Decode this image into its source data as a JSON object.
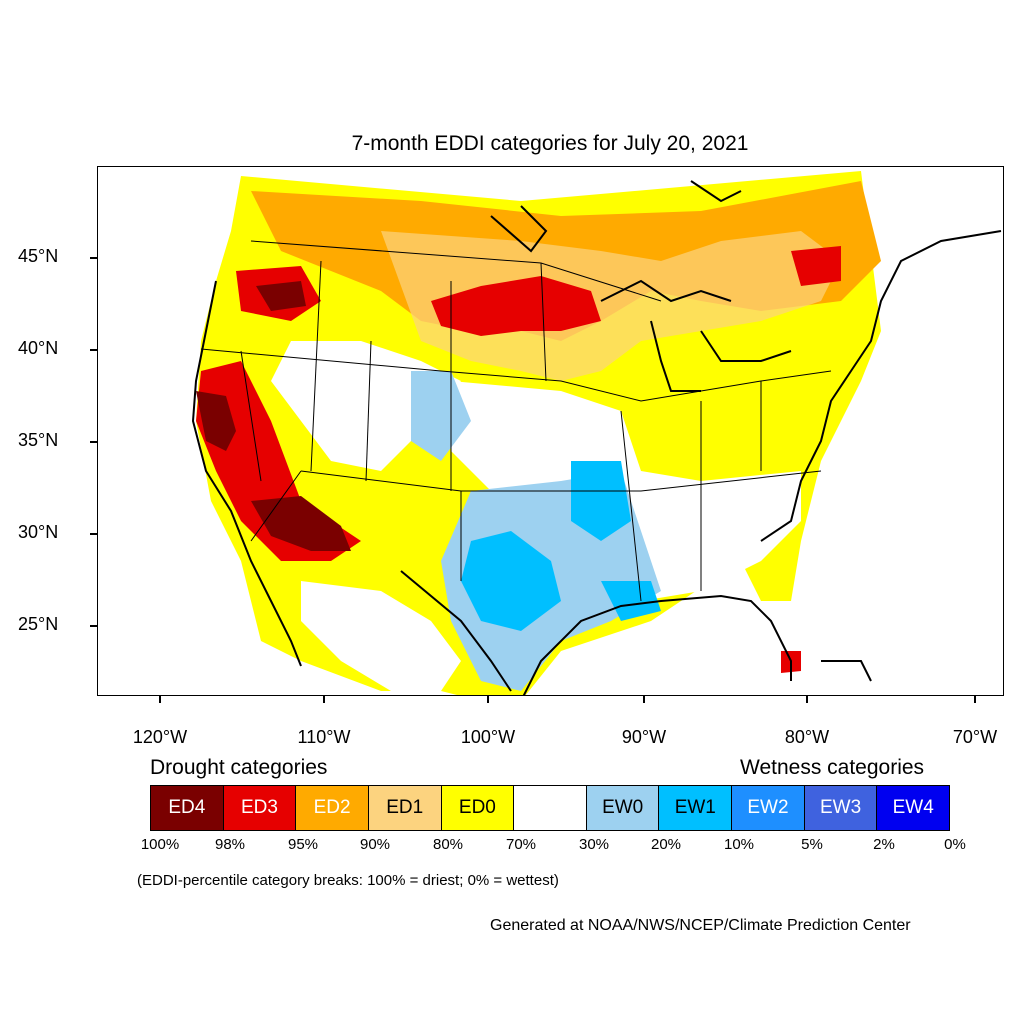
{
  "title": "7-month EDDI categories for July 20, 2021",
  "axes": {
    "lat_labels": [
      "45°N",
      "40°N",
      "35°N",
      "30°N",
      "25°N"
    ],
    "lon_labels": [
      "120°W",
      "110°W",
      "100°W",
      "90°W",
      "80°W",
      "70°W"
    ]
  },
  "legend": {
    "drought_title": "Drought categories",
    "wetness_title": "Wetness categories",
    "categories": [
      {
        "label": "ED4",
        "color": "#7a0000",
        "text_color": "#ffffff"
      },
      {
        "label": "ED3",
        "color": "#e60000",
        "text_color": "#ffffff"
      },
      {
        "label": "ED2",
        "color": "#ffaa00",
        "text_color": "#ffffff"
      },
      {
        "label": "ED1",
        "color": "#fcd37f",
        "text_color": "#000000"
      },
      {
        "label": "ED0",
        "color": "#ffff00",
        "text_color": "#000000"
      },
      {
        "label": "",
        "color": "#ffffff",
        "text_color": "#000000"
      },
      {
        "label": "EW0",
        "color": "#9dd1f0",
        "text_color": "#000000"
      },
      {
        "label": "EW1",
        "color": "#00bfff",
        "text_color": "#000000"
      },
      {
        "label": "EW2",
        "color": "#1e8fff",
        "text_color": "#ffffff"
      },
      {
        "label": "EW3",
        "color": "#3f62df",
        "text_color": "#ffffff"
      },
      {
        "label": "EW4",
        "color": "#0000f0",
        "text_color": "#ffffff"
      }
    ],
    "breaks": [
      "100%",
      "98%",
      "95%",
      "90%",
      "80%",
      "70%",
      "30%",
      "20%",
      "10%",
      "5%",
      "2%",
      "0%"
    ]
  },
  "note": "(EDDI-percentile category breaks: 100% = driest; 0% = wettest)",
  "credit": "Generated at NOAA/NWS/NCEP/Climate Prediction Center"
}
